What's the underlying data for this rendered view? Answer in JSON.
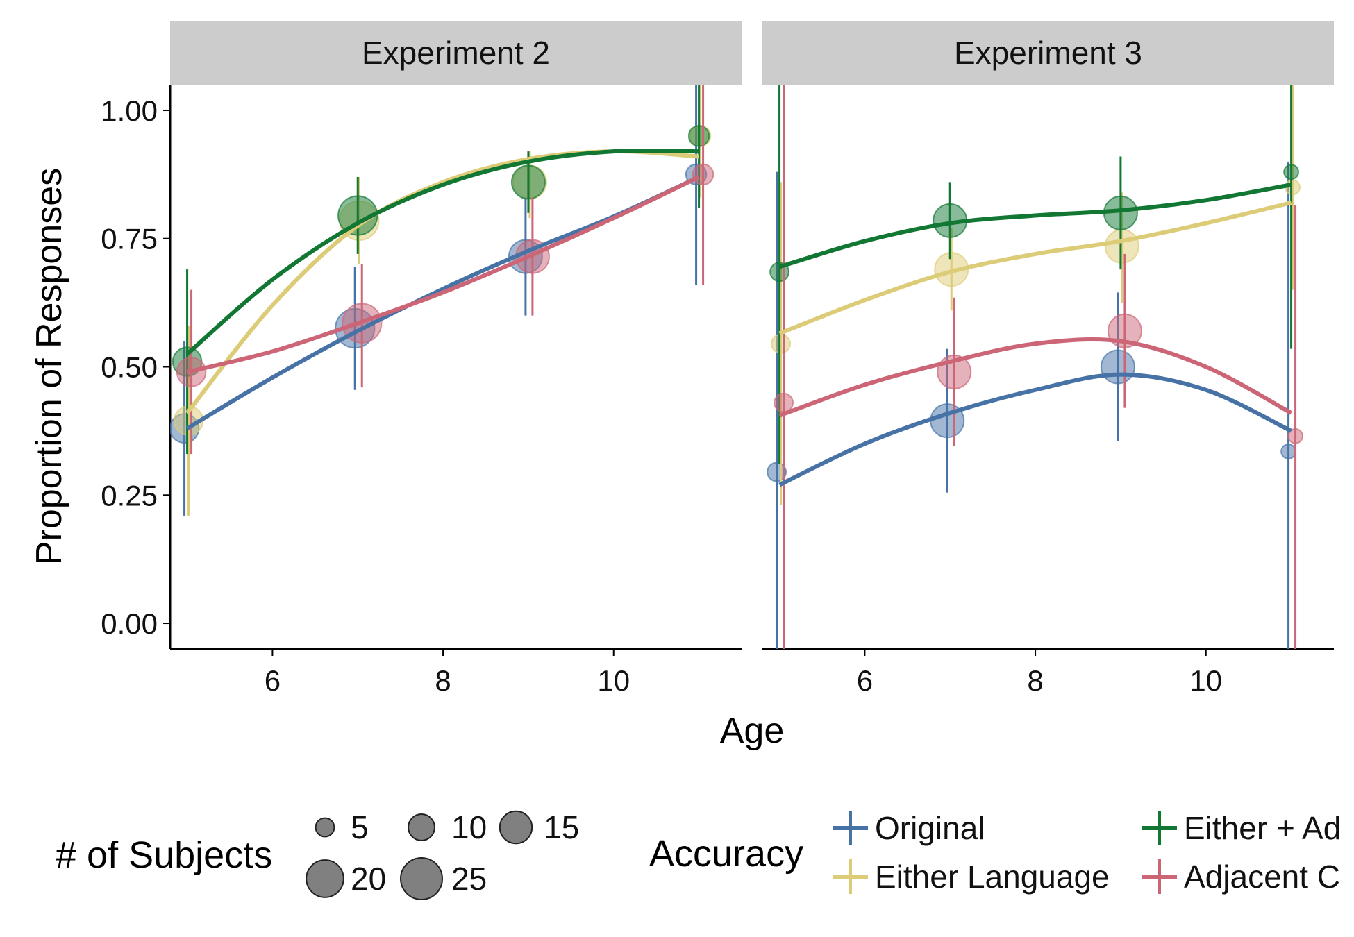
{
  "chart_data": {
    "type": "scatter",
    "panels": [
      {
        "title": "Experiment 2",
        "series": [
          {
            "name": "Original",
            "points": [
              {
                "x": 5,
                "y": 0.38,
                "n": 12,
                "lo": 0.21,
                "hi": 0.55
              },
              {
                "x": 7,
                "y": 0.575,
                "n": 22,
                "lo": 0.455,
                "hi": 0.695
              },
              {
                "x": 9,
                "y": 0.715,
                "n": 16,
                "lo": 0.6,
                "hi": 0.83
              },
              {
                "x": 11,
                "y": 0.875,
                "n": 6,
                "lo": 0.66,
                "hi": 1.05
              }
            ],
            "curve": [
              0.38,
              0.479,
              0.57,
              0.652,
              0.726,
              0.793,
              0.87
            ]
          },
          {
            "name": "Either Language",
            "points": [
              {
                "x": 5,
                "y": 0.395,
                "n": 12,
                "lo": 0.21,
                "hi": 0.58
              },
              {
                "x": 7,
                "y": 0.785,
                "n": 22,
                "lo": 0.7,
                "hi": 0.87
              },
              {
                "x": 9,
                "y": 0.86,
                "n": 16,
                "lo": 0.79,
                "hi": 0.92
              },
              {
                "x": 11,
                "y": 0.95,
                "n": 6,
                "lo": 0.83,
                "hi": 1.05
              }
            ],
            "curve": [
              0.41,
              0.62,
              0.775,
              0.86,
              0.905,
              0.92,
              0.91
            ]
          },
          {
            "name": "Either + Adjacent",
            "points": [
              {
                "x": 5,
                "y": 0.51,
                "n": 12,
                "lo": 0.33,
                "hi": 0.69
              },
              {
                "x": 7,
                "y": 0.795,
                "n": 22,
                "lo": 0.72,
                "hi": 0.87
              },
              {
                "x": 9,
                "y": 0.86,
                "n": 16,
                "lo": 0.8,
                "hi": 0.92
              },
              {
                "x": 11,
                "y": 0.95,
                "n": 6,
                "lo": 0.81,
                "hi": 1.05
              }
            ],
            "curve": [
              0.525,
              0.67,
              0.78,
              0.855,
              0.9,
              0.92,
              0.92
            ]
          },
          {
            "name": "Adjacent Clause",
            "points": [
              {
                "x": 5,
                "y": 0.49,
                "n": 12,
                "lo": 0.33,
                "hi": 0.65
              },
              {
                "x": 7,
                "y": 0.585,
                "n": 22,
                "lo": 0.46,
                "hi": 0.7
              },
              {
                "x": 9,
                "y": 0.715,
                "n": 16,
                "lo": 0.6,
                "hi": 0.83
              },
              {
                "x": 11,
                "y": 0.875,
                "n": 6,
                "lo": 0.66,
                "hi": 1.05
              }
            ],
            "curve": [
              0.49,
              0.53,
              0.585,
              0.645,
              0.715,
              0.79,
              0.87
            ]
          }
        ]
      },
      {
        "title": "Experiment 3",
        "series": [
          {
            "name": "Original",
            "points": [
              {
                "x": 5,
                "y": 0.295,
                "n": 5,
                "lo": -0.05,
                "hi": 0.88
              },
              {
                "x": 7,
                "y": 0.395,
                "n": 16,
                "lo": 0.255,
                "hi": 0.535
              },
              {
                "x": 9,
                "y": 0.5,
                "n": 16,
                "lo": 0.355,
                "hi": 0.645
              },
              {
                "x": 11,
                "y": 0.335,
                "n": 3,
                "lo": -0.05,
                "hi": 0.9
              }
            ],
            "curve": [
              0.27,
              0.35,
              0.41,
              0.455,
              0.485,
              0.455,
              0.375
            ]
          },
          {
            "name": "Either Language",
            "points": [
              {
                "x": 5,
                "y": 0.545,
                "n": 5,
                "lo": 0.23,
                "hi": 0.86
              },
              {
                "x": 7,
                "y": 0.69,
                "n": 16,
                "lo": 0.61,
                "hi": 0.77
              },
              {
                "x": 9,
                "y": 0.735,
                "n": 16,
                "lo": 0.625,
                "hi": 0.84
              },
              {
                "x": 11,
                "y": 0.85,
                "n": 3,
                "lo": 0.65,
                "hi": 1.05
              }
            ],
            "curve": [
              0.565,
              0.63,
              0.685,
              0.72,
              0.745,
              0.78,
              0.82
            ]
          },
          {
            "name": "Either + Adjacent",
            "points": [
              {
                "x": 5,
                "y": 0.685,
                "n": 5,
                "lo": 0.31,
                "hi": 1.05
              },
              {
                "x": 7,
                "y": 0.785,
                "n": 16,
                "lo": 0.71,
                "hi": 0.86
              },
              {
                "x": 9,
                "y": 0.8,
                "n": 16,
                "lo": 0.69,
                "hi": 0.91
              },
              {
                "x": 11,
                "y": 0.88,
                "n": 3,
                "lo": 0.535,
                "hi": 1.05
              }
            ],
            "curve": [
              0.695,
              0.745,
              0.78,
              0.795,
              0.805,
              0.825,
              0.855
            ]
          },
          {
            "name": "Adjacent Clause",
            "points": [
              {
                "x": 5,
                "y": 0.43,
                "n": 5,
                "lo": -0.05,
                "hi": 1.05
              },
              {
                "x": 7,
                "y": 0.49,
                "n": 16,
                "lo": 0.345,
                "hi": 0.635
              },
              {
                "x": 9,
                "y": 0.57,
                "n": 16,
                "lo": 0.42,
                "hi": 0.72
              },
              {
                "x": 11,
                "y": 0.365,
                "n": 3,
                "lo": -0.05,
                "hi": 0.815
              }
            ],
            "curve": [
              0.405,
              0.465,
              0.51,
              0.545,
              0.55,
              0.5,
              0.41
            ]
          }
        ]
      }
    ],
    "x_ticks": [
      "6",
      "8",
      "10"
    ],
    "y_ticks": [
      "0.00",
      "0.25",
      "0.50",
      "0.75",
      "1.00"
    ],
    "xlim": [
      4.8,
      11.5
    ],
    "ylim": [
      -0.05,
      1.05
    ],
    "xlabel": "Age",
    "ylabel": "Proportion of Responses",
    "grid": false,
    "legend_position": "bottom",
    "size_legend": {
      "title": "# of Subjects",
      "entries": [
        "5",
        "10",
        "15",
        "20",
        "25"
      ]
    },
    "color_legend": {
      "title": "Accuracy",
      "entries": [
        "Original",
        "Either Language",
        "Either + Ad",
        "Adjacent C"
      ]
    }
  },
  "colors": {
    "Original": "#4672a6",
    "Either Language": "#ddcc77",
    "Either + Adjacent": "#117733",
    "Adjacent Clause": "#cc6677",
    "strip": "#cccccc"
  }
}
